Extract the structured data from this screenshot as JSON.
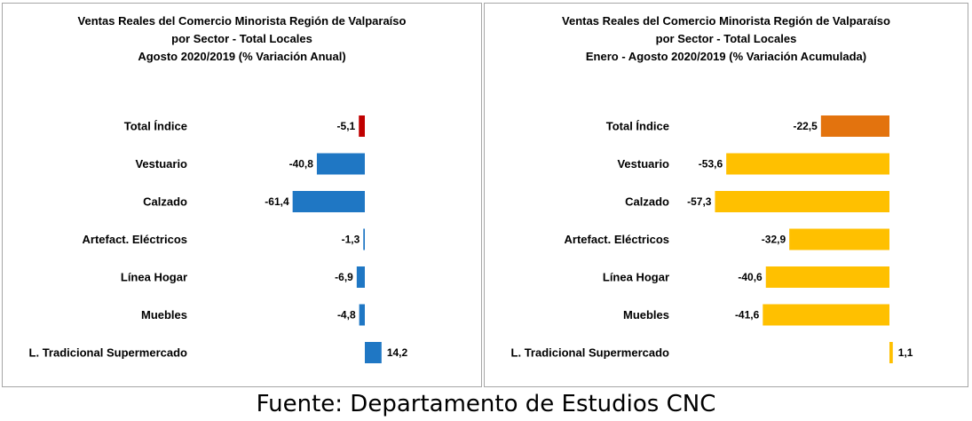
{
  "chart_data": [
    {
      "type": "bar",
      "orientation": "horizontal",
      "title_lines": [
        "Ventas Reales del Comercio Minorista Región de Valparaíso",
        "por Sector  - Total Locales",
        "Agosto 2020/2019  (% Variación Anual)"
      ],
      "categories": [
        "Total Índice",
        "Vestuario",
        "Calzado",
        "Artefact. Eléctricos",
        "Línea Hogar",
        "Muebles",
        "L. Tradicional Supermercado"
      ],
      "values": [
        -5.1,
        -40.8,
        -61.4,
        -1.3,
        -6.9,
        -4.8,
        14.2
      ],
      "value_labels": [
        "-5,1",
        "-40,8",
        "-61,4",
        "-1,3",
        "-6,9",
        "-4,8",
        "14,2"
      ],
      "colors": [
        "#c00000",
        "#1f77c4",
        "#1f77c4",
        "#1f77c4",
        "#1f77c4",
        "#1f77c4",
        "#1f77c4"
      ],
      "xlim": [
        -70,
        20
      ],
      "grid": false,
      "legend": "none"
    },
    {
      "type": "bar",
      "orientation": "horizontal",
      "title_lines": [
        "Ventas Reales del Comercio Minorista Región de Valparaíso",
        "por Sector  - Total Locales",
        "Enero - Agosto  2020/2019  (% Variación Acumulada)"
      ],
      "categories": [
        "Total Índice",
        "Vestuario",
        "Calzado",
        "Artefact. Eléctricos",
        "Línea Hogar",
        "Muebles",
        "L. Tradicional Supermercado"
      ],
      "values": [
        -22.5,
        -53.6,
        -57.3,
        -32.9,
        -40.6,
        -41.6,
        1.1
      ],
      "value_labels": [
        "-22,5",
        "-53,6",
        "-57,3",
        "-32,9",
        "-40,6",
        "-41,6",
        "1,1"
      ],
      "colors": [
        "#e3730e",
        "#ffc000",
        "#ffc000",
        "#ffc000",
        "#ffc000",
        "#ffc000",
        "#ffc000"
      ],
      "xlim": [
        -65,
        5
      ],
      "grid": false,
      "legend": "none"
    }
  ],
  "footer": {
    "source": "Fuente: Departamento de Estudios CNC"
  }
}
